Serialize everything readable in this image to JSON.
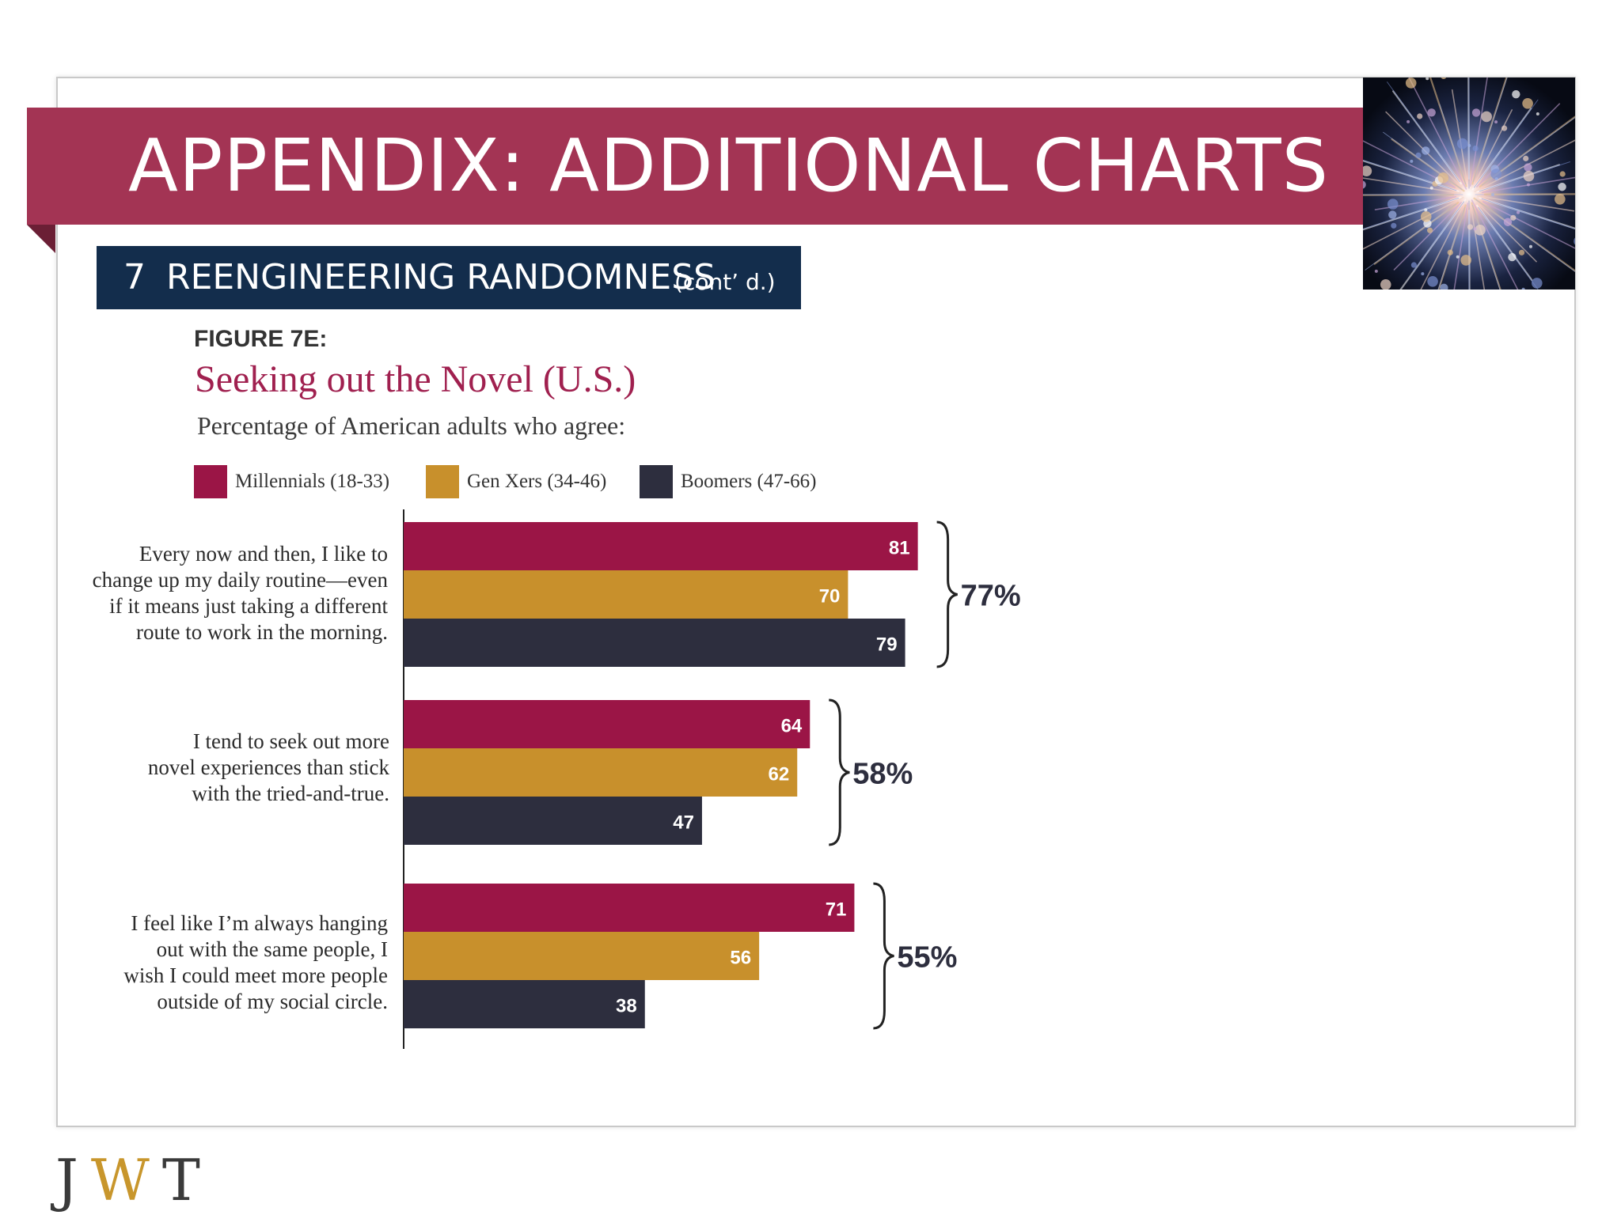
{
  "header": {
    "title": "APPENDIX: ADDITIONAL CHARTS",
    "section_number": "7",
    "section_title": "REENGINEERING RANDOMNESS",
    "section_suffix": "(cont’ d.)"
  },
  "brand": {
    "logo_letters": [
      "J",
      "W",
      "T"
    ],
    "colors": {
      "banner": "#a33454",
      "section_bar": "#132d4c",
      "logo_j": "#3a3a3a",
      "logo_w": "#c8962c",
      "logo_t": "#3a3a3a"
    }
  },
  "chart_data": {
    "type": "bar",
    "orientation": "horizontal",
    "figure_label": "FIGURE 7E:",
    "title": "Seeking out the Novel (U.S.)",
    "subtitle": "Percentage of American adults who agree:",
    "legend_position": "top",
    "xlim": [
      0,
      100
    ],
    "categories": [
      "Every now and then, I like to change up my daily routine—even if it means just taking a different route to work in the morning.",
      "I tend to seek out more novel experiences than stick with the tried-and-true.",
      "I feel like I’m always hanging out with the same people, I wish I could meet more people outside of my social circle."
    ],
    "category_lines": [
      [
        "Every now and then, I like to",
        "change up my daily routine—even",
        "if it means just taking a different",
        "route to work in the morning."
      ],
      [
        "I tend to seek out more",
        "novel experiences than stick",
        "with the tried-and-true."
      ],
      [
        "I feel like I’m always hanging",
        "out with the same people, I",
        "wish I could meet more people",
        "outside of my social circle."
      ]
    ],
    "series": [
      {
        "name": "Millennials (18-33)",
        "color": "#9b1546",
        "values": [
          81,
          64,
          71
        ]
      },
      {
        "name": "Gen Xers (34-46)",
        "color": "#c8902c",
        "values": [
          70,
          62,
          56
        ]
      },
      {
        "name": "Boomers (47-66)",
        "color": "#2d2e3e",
        "values": [
          79,
          47,
          38
        ]
      }
    ],
    "totals": [
      "77%",
      "58%",
      "55%"
    ]
  }
}
